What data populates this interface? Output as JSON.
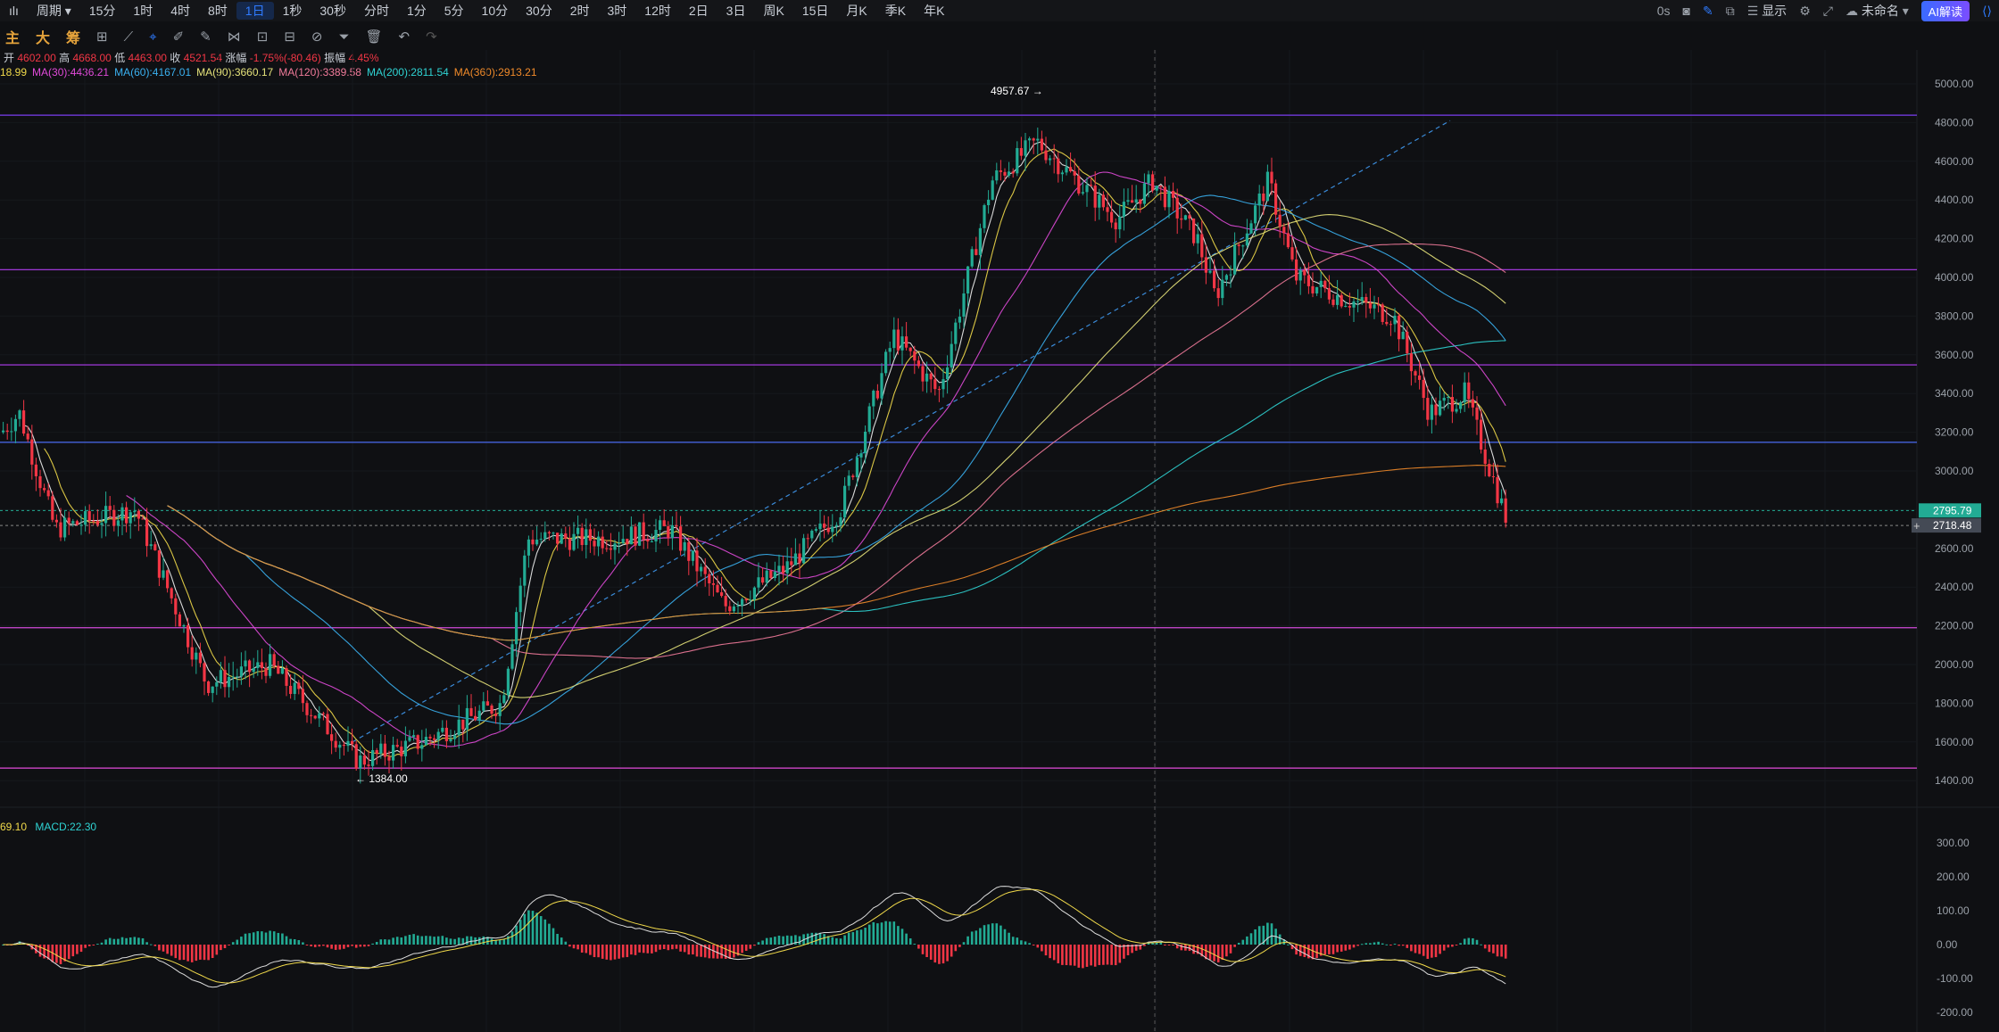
{
  "toolbar": {
    "menu": "ılı",
    "period": "周期",
    "intervals": [
      "15分",
      "1时",
      "4时",
      "8时",
      "1日",
      "1秒",
      "30秒",
      "分时",
      "1分",
      "5分",
      "10分",
      "30分",
      "2时",
      "3时",
      "12时",
      "2日",
      "3日",
      "周K",
      "15日",
      "月K",
      "季K",
      "年K"
    ],
    "active_interval": "1日",
    "countdown": "0s",
    "display_label": "显示",
    "layout_name": "未命名",
    "ai_label": "AI解读"
  },
  "toolbar2": {
    "labels": [
      "主",
      "大",
      "筹"
    ]
  },
  "info": {
    "open_label": "开",
    "open": "4602.00",
    "high_label": "高",
    "high": "4668.00",
    "low_label": "低",
    "low": "4463.00",
    "close_label": "收",
    "close": "4521.54",
    "change_label": "涨幅",
    "change": "-1.75%(-80.46)",
    "amp_label": "振幅",
    "amp": "4.45%"
  },
  "ma": [
    {
      "text": "18.99",
      "color": "#f0d94a"
    },
    {
      "text": "MA(30):4436.21",
      "color": "#e04ad9"
    },
    {
      "text": "MA(60):4167.01",
      "color": "#3ab0f0"
    },
    {
      "text": "MA(90):3660.17",
      "color": "#e5e27a"
    },
    {
      "text": "MA(120):3389.58",
      "color": "#f07a9a"
    },
    {
      "text": "MA(200):2811.54",
      "color": "#2fd3d3"
    },
    {
      "text": "MA(360):2913.21",
      "color": "#f08a2a"
    }
  ],
  "macd": {
    "val": "69.10",
    "label": "MACD:22.30"
  },
  "price_axis": [
    "5000.00",
    "4800.00",
    "4600.00",
    "4400.00",
    "4200.00",
    "4000.00",
    "3800.00",
    "3600.00",
    "3400.00",
    "3200.00",
    "3000.00",
    "2800.00",
    "2600.00",
    "2400.00",
    "2200.00",
    "2000.00",
    "1800.00",
    "1600.00",
    "1400.00"
  ],
  "macd_axis": [
    "300.00",
    "200.00",
    "100.00",
    "0.00",
    "-100.00",
    "-200.00"
  ],
  "annotations": {
    "high": "4957.67",
    "low": "1384.00"
  },
  "current_price": "2795.79",
  "cursor_price": "2718.48",
  "colors": {
    "up": "#22ab94",
    "down": "#f23645",
    "bg": "#0f1013"
  }
}
